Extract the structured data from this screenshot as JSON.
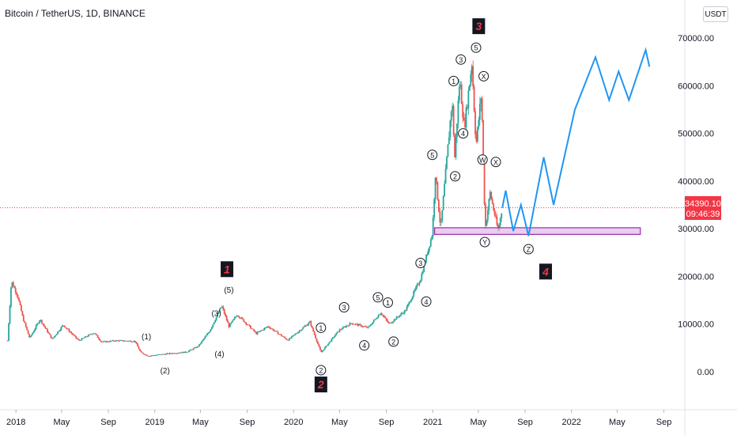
{
  "header": {
    "title": "Bitcoin / TetherUS, 1D, BINANCE",
    "currency_button": "USDT"
  },
  "price_tag": {
    "value": "34390.10",
    "countdown": "09:46:39"
  },
  "colors": {
    "up": "#26a69a",
    "down": "#ef5350",
    "forecast": "#2196f3",
    "zone_fill": "#e1bee7",
    "zone_border": "#9c27b0",
    "label_box": "#131722",
    "label_text": "#f23645"
  },
  "chart_data": {
    "type": "line",
    "title": "Bitcoin / TetherUS, 1D, BINANCE",
    "xlabel": "",
    "ylabel": "",
    "ylim": [
      -8000,
      78000
    ],
    "y_ticks": [
      0,
      10000,
      20000,
      30000,
      40000,
      50000,
      60000,
      70000
    ],
    "y_tick_labels": [
      "0.00",
      "10000.00",
      "20000.00",
      "30000.00",
      "40000.00",
      "50000.00",
      "60000.00",
      "70000.00"
    ],
    "x_ticks": [
      {
        "date": "2018-01-01",
        "label": "2018"
      },
      {
        "date": "2018-05-01",
        "label": "May"
      },
      {
        "date": "2018-09-01",
        "label": "Sep"
      },
      {
        "date": "2019-01-01",
        "label": "2019"
      },
      {
        "date": "2019-05-01",
        "label": "May"
      },
      {
        "date": "2019-09-01",
        "label": "Sep"
      },
      {
        "date": "2020-01-01",
        "label": "2020"
      },
      {
        "date": "2020-05-01",
        "label": "May"
      },
      {
        "date": "2020-09-01",
        "label": "Sep"
      },
      {
        "date": "2021-01-01",
        "label": "2021"
      },
      {
        "date": "2021-05-01",
        "label": "May"
      },
      {
        "date": "2021-09-01",
        "label": "Sep"
      },
      {
        "date": "2022-01-01",
        "label": "2022"
      },
      {
        "date": "2022-05-01",
        "label": "May"
      },
      {
        "date": "2022-09-01",
        "label": "Sep"
      }
    ],
    "current_price": 34390.1,
    "series": [
      {
        "points": [
          [
            "2017-12-10",
            6500
          ],
          [
            "2017-12-20",
            19000
          ],
          [
            "2018-01-05",
            16000
          ],
          [
            "2018-01-20",
            11000
          ],
          [
            "2018-02-06",
            7000
          ],
          [
            "2018-03-05",
            11000
          ],
          [
            "2018-04-06",
            6800
          ],
          [
            "2018-05-05",
            9800
          ],
          [
            "2018-06-15",
            6500
          ],
          [
            "2018-07-25",
            8200
          ],
          [
            "2018-08-14",
            6200
          ],
          [
            "2018-09-20",
            6500
          ],
          [
            "2018-11-10",
            6400
          ],
          [
            "2018-11-25",
            4000
          ],
          [
            "2018-12-15",
            3300
          ],
          [
            "2019-01-20",
            3600
          ],
          [
            "2019-02-20",
            3900
          ],
          [
            "2019-03-25",
            4100
          ],
          [
            "2019-04-25",
            5300
          ],
          [
            "2019-05-25",
            8500
          ],
          [
            "2019-06-26",
            13800
          ],
          [
            "2019-07-15",
            9500
          ],
          [
            "2019-08-06",
            12000
          ],
          [
            "2019-09-25",
            8000
          ],
          [
            "2019-10-26",
            9500
          ],
          [
            "2019-12-17",
            6600
          ],
          [
            "2020-02-13",
            10400
          ],
          [
            "2020-03-13",
            4000
          ],
          [
            "2020-04-30",
            8700
          ],
          [
            "2020-06-01",
            10200
          ],
          [
            "2020-07-15",
            9200
          ],
          [
            "2020-08-17",
            12400
          ],
          [
            "2020-09-08",
            10000
          ],
          [
            "2020-10-21",
            12800
          ],
          [
            "2020-11-30",
            19500
          ],
          [
            "2020-12-31",
            29000
          ],
          [
            "2021-01-08",
            41500
          ],
          [
            "2021-01-22",
            30000
          ],
          [
            "2021-02-21",
            57000
          ],
          [
            "2021-02-28",
            45000
          ],
          [
            "2021-03-13",
            61500
          ],
          [
            "2021-03-25",
            51000
          ],
          [
            "2021-04-14",
            64800
          ],
          [
            "2021-04-25",
            47500
          ],
          [
            "2021-05-09",
            58500
          ],
          [
            "2021-05-19",
            30000
          ],
          [
            "2021-06-01",
            37500
          ],
          [
            "2021-06-22",
            29500
          ],
          [
            "2021-07-03",
            34390
          ]
        ]
      },
      {
        "name": "",
        "points": [
          [
            "2021-07-03",
            34390
          ],
          [
            "2021-07-12",
            38000
          ],
          [
            "2021-08-01",
            29500
          ],
          [
            "2021-08-21",
            35000
          ],
          [
            "2021-09-10",
            28500
          ],
          [
            "2021-10-20",
            45000
          ],
          [
            "2021-11-15",
            35000
          ],
          [
            "2022-01-10",
            55000
          ],
          [
            "2022-03-05",
            66000
          ],
          [
            "2022-04-10",
            57000
          ],
          [
            "2022-05-05",
            63000
          ],
          [
            "2022-06-01",
            57000
          ],
          [
            "2022-07-15",
            67500
          ],
          [
            "2022-07-25",
            64000
          ]
        ]
      }
    ],
    "zones": [
      {
        "x_from": "2021-01-06",
        "x_to": "2022-07-01",
        "y_from": 28800,
        "y_to": 30200
      }
    ],
    "annotations": [
      {
        "text": "(1)",
        "date": "2018-12-10",
        "y": 7400,
        "style": "plain"
      },
      {
        "text": "(2)",
        "date": "2019-01-28",
        "y": 300,
        "style": "plain"
      },
      {
        "text": "(3)",
        "date": "2019-06-12",
        "y": 12300,
        "style": "plain"
      },
      {
        "text": "(4)",
        "date": "2019-06-20",
        "y": 3800,
        "style": "plain"
      },
      {
        "text": "(5)",
        "date": "2019-07-15",
        "y": 17200,
        "style": "plain"
      },
      {
        "text": "1",
        "date": "2019-07-10",
        "y": 21500,
        "style": "box"
      },
      {
        "text": "2",
        "date": "2020-03-13",
        "y": -2700,
        "style": "box"
      },
      {
        "text": "3",
        "date": "2021-05-02",
        "y": 72500,
        "style": "box"
      },
      {
        "text": "4",
        "date": "2021-10-25",
        "y": 21000,
        "style": "box"
      },
      {
        "text": "1",
        "date": "2020-03-13",
        "y": 9200,
        "style": "circle"
      },
      {
        "text": "2",
        "date": "2020-03-13",
        "y": 300,
        "style": "circle"
      },
      {
        "text": "3",
        "date": "2020-05-13",
        "y": 13500,
        "style": "circle"
      },
      {
        "text": "4",
        "date": "2020-07-05",
        "y": 5500,
        "style": "circle"
      },
      {
        "text": "5",
        "date": "2020-08-10",
        "y": 15600,
        "style": "circle"
      },
      {
        "text": "1",
        "date": "2020-09-05",
        "y": 14500,
        "style": "circle"
      },
      {
        "text": "2",
        "date": "2020-09-20",
        "y": 6300,
        "style": "circle"
      },
      {
        "text": "3",
        "date": "2020-11-30",
        "y": 22800,
        "style": "circle"
      },
      {
        "text": "4",
        "date": "2020-12-15",
        "y": 14700,
        "style": "circle"
      },
      {
        "text": "5",
        "date": "2020-12-31",
        "y": 45500,
        "style": "circle"
      },
      {
        "text": "1",
        "date": "2021-02-25",
        "y": 61000,
        "style": "circle"
      },
      {
        "text": "2",
        "date": "2021-03-01",
        "y": 41000,
        "style": "circle"
      },
      {
        "text": "3",
        "date": "2021-03-16",
        "y": 65500,
        "style": "circle"
      },
      {
        "text": "4",
        "date": "2021-03-22",
        "y": 50000,
        "style": "circle"
      },
      {
        "text": "5",
        "date": "2021-04-25",
        "y": 68000,
        "style": "circle"
      },
      {
        "text": "X",
        "date": "2021-05-15",
        "y": 62000,
        "style": "circle"
      },
      {
        "text": "W",
        "date": "2021-05-12",
        "y": 44500,
        "style": "circle"
      },
      {
        "text": "X",
        "date": "2021-06-16",
        "y": 44000,
        "style": "circle"
      },
      {
        "text": "Y",
        "date": "2021-05-18",
        "y": 27200,
        "style": "circle"
      },
      {
        "text": "Z",
        "date": "2021-09-10",
        "y": 25700,
        "style": "circle"
      }
    ]
  }
}
